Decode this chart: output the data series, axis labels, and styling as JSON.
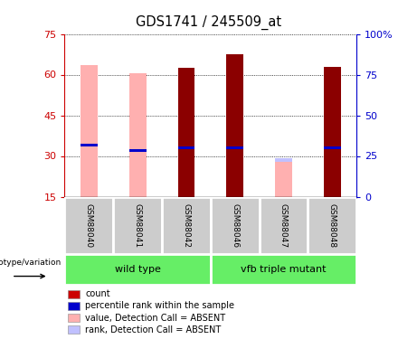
{
  "title": "GDS1741 / 245509_at",
  "samples": [
    "GSM88040",
    "GSM88041",
    "GSM88042",
    "GSM88046",
    "GSM88047",
    "GSM88048"
  ],
  "groups": [
    {
      "label": "wild type",
      "indices": [
        0,
        1,
        2
      ]
    },
    {
      "label": "vfb triple mutant",
      "indices": [
        3,
        4,
        5
      ]
    }
  ],
  "ylim_left": [
    15,
    75
  ],
  "ylim_right": [
    0,
    100
  ],
  "yticks_left": [
    15,
    30,
    45,
    60,
    75
  ],
  "yticks_right": [
    0,
    25,
    50,
    75,
    100
  ],
  "ytick_labels_right": [
    "0",
    "25",
    "50",
    "75",
    "100%"
  ],
  "pink_values": [
    63.5,
    60.5,
    null,
    67.5,
    29.0,
    null
  ],
  "pink_rank_values": [
    34.0,
    32.0,
    null,
    33.0,
    28.5,
    null
  ],
  "red_values": [
    null,
    null,
    62.5,
    67.5,
    null,
    63.0
  ],
  "blue_rank_values": [
    34.0,
    32.0,
    33.0,
    33.0,
    null,
    33.0
  ],
  "colors": {
    "red": "#8B0000",
    "pink": "#FFB0B0",
    "blue": "#0000CC",
    "light_blue": "#C0C0FF",
    "green_group": "#66EE66",
    "gray_sample": "#CCCCCC",
    "axis_left_color": "#CC0000",
    "axis_right_color": "#0000CC",
    "white": "#FFFFFF"
  },
  "legend_items": [
    {
      "color": "#CC0000",
      "label": "count"
    },
    {
      "color": "#0000CC",
      "label": "percentile rank within the sample"
    },
    {
      "color": "#FFB0B0",
      "label": "value, Detection Call = ABSENT"
    },
    {
      "color": "#C0C0FF",
      "label": "rank, Detection Call = ABSENT"
    }
  ]
}
